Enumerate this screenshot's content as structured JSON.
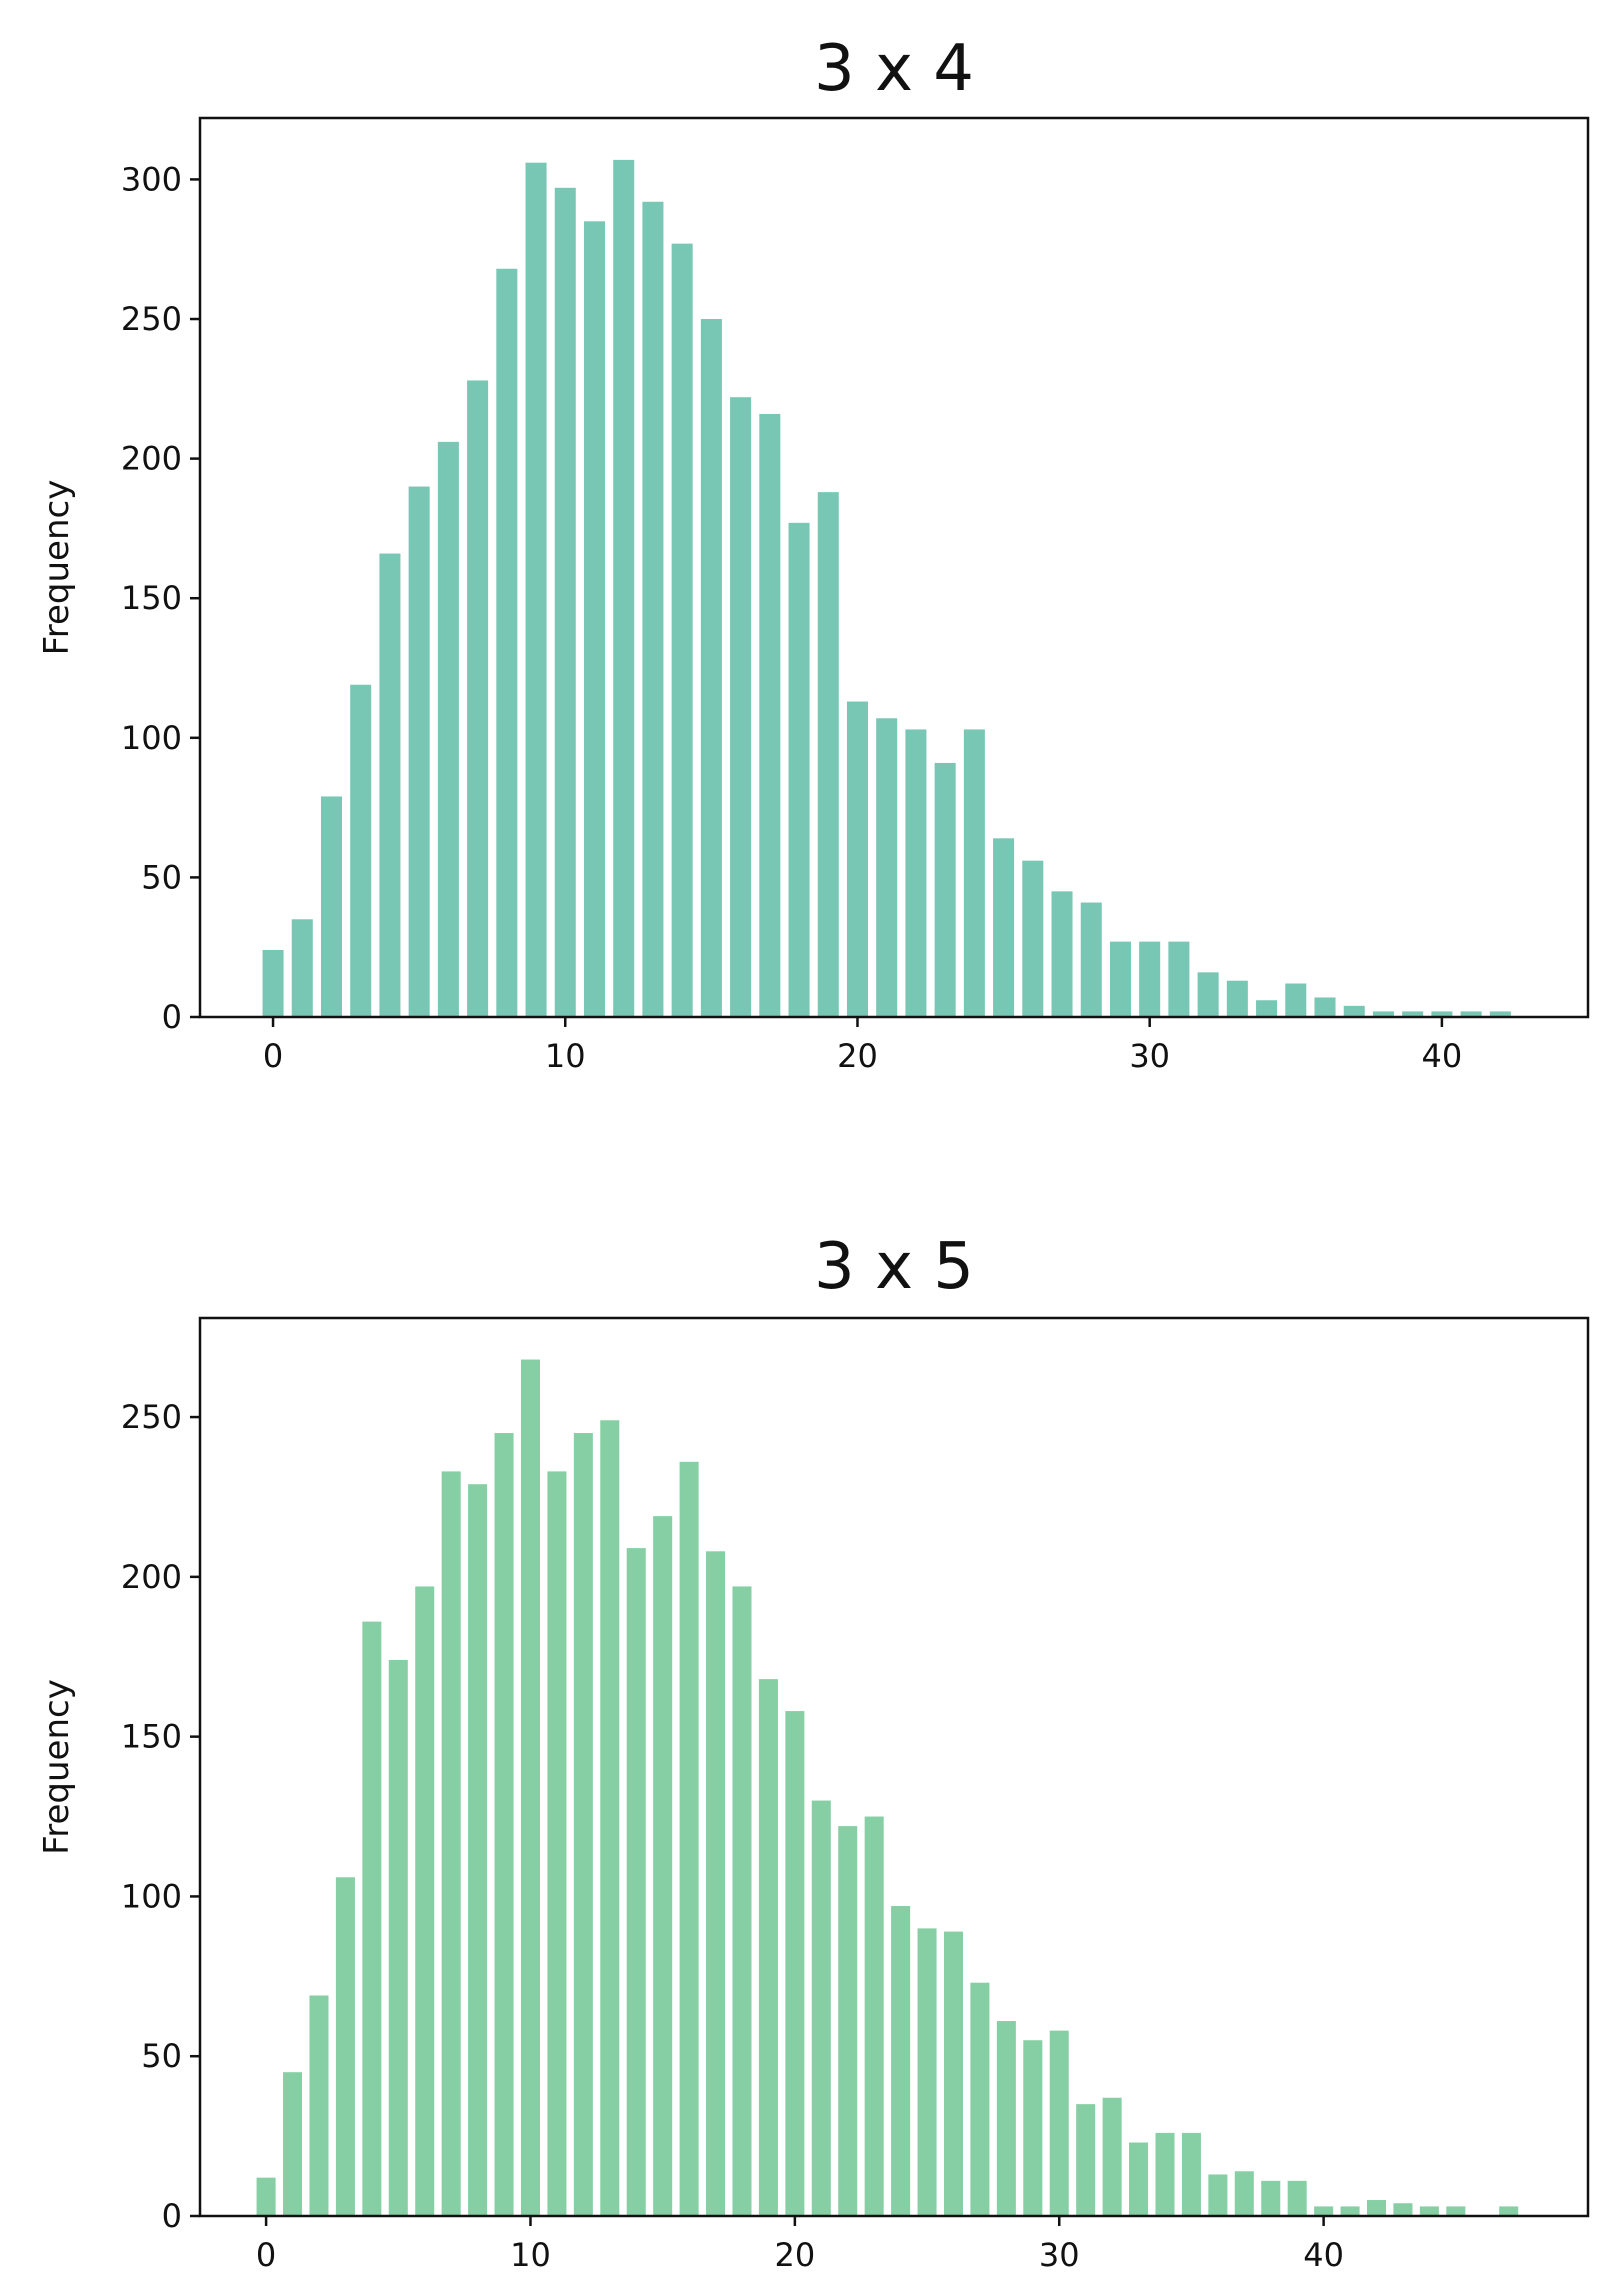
{
  "chart_data": [
    {
      "type": "bar",
      "title": "3 x 4",
      "xlabel": "",
      "ylabel": "Frequency",
      "xlim": [
        -2.5,
        45
      ],
      "ylim": [
        0,
        322
      ],
      "xticks": [
        0,
        10,
        20,
        30,
        40
      ],
      "yticks": [
        0,
        50,
        100,
        150,
        200,
        250,
        300
      ],
      "color": "#78c7b4",
      "x": [
        0,
        1,
        2,
        3,
        4,
        5,
        6,
        7,
        8,
        9,
        10,
        11,
        12,
        13,
        14,
        15,
        16,
        17,
        18,
        19,
        20,
        21,
        22,
        23,
        24,
        25,
        26,
        27,
        28,
        29,
        30,
        31,
        32,
        33,
        34,
        35,
        36,
        37,
        38,
        39,
        40,
        41,
        42
      ],
      "values": [
        24,
        35,
        79,
        119,
        166,
        190,
        206,
        228,
        268,
        306,
        297,
        285,
        307,
        292,
        277,
        250,
        222,
        216,
        177,
        188,
        113,
        107,
        103,
        91,
        103,
        64,
        56,
        45,
        41,
        27,
        27,
        27,
        16,
        13,
        6,
        12,
        7,
        4,
        2,
        2,
        2,
        2,
        2
      ]
    },
    {
      "type": "bar",
      "title": "3 x 5",
      "xlabel": "",
      "ylabel": "Frequency",
      "xlim": [
        -2.5,
        50
      ],
      "ylim": [
        0,
        281
      ],
      "xticks": [
        0,
        10,
        20,
        30,
        40
      ],
      "yticks": [
        0,
        50,
        100,
        150,
        200,
        250
      ],
      "color": "#86cfa4",
      "x": [
        0,
        1,
        2,
        3,
        4,
        5,
        6,
        7,
        8,
        9,
        10,
        11,
        12,
        13,
        14,
        15,
        16,
        17,
        18,
        19,
        20,
        21,
        22,
        23,
        24,
        25,
        26,
        27,
        28,
        29,
        30,
        31,
        32,
        33,
        34,
        35,
        36,
        37,
        38,
        39,
        40,
        41,
        42,
        43,
        44,
        45,
        46,
        47
      ],
      "values": [
        12,
        45,
        69,
        106,
        186,
        174,
        197,
        233,
        229,
        245,
        268,
        233,
        245,
        249,
        209,
        219,
        236,
        208,
        197,
        168,
        158,
        130,
        122,
        125,
        97,
        90,
        89,
        73,
        61,
        55,
        58,
        35,
        37,
        23,
        26,
        26,
        13,
        14,
        11,
        11,
        3,
        3,
        5,
        4,
        3,
        3,
        0,
        3
      ]
    }
  ]
}
